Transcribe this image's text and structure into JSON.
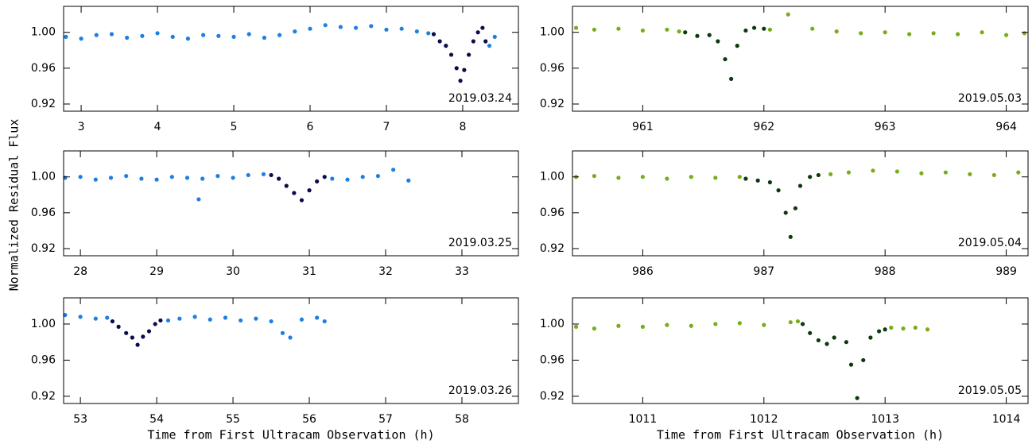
{
  "chart_data": [
    {
      "type": "scatter",
      "annotation": "2019.03.24",
      "ylabel": "Normalized Residual Flux",
      "xlim": [
        2.77,
        8.73
      ],
      "xticks": [
        3,
        4,
        5,
        6,
        7,
        8
      ],
      "ylim": [
        0.912,
        1.029
      ],
      "yticks": [
        0.92,
        0.96,
        {
          "value": 1,
          "label": "1.00"
        }
      ],
      "series": [
        {
          "color": "#1f7fe0",
          "x": [
            2.8,
            3.0,
            3.2,
            3.4,
            3.6,
            3.8,
            4.0,
            4.2,
            4.4,
            4.6,
            4.8,
            5.0,
            5.2,
            5.4,
            5.6,
            5.8,
            6.0,
            6.2,
            6.4,
            6.6,
            6.8,
            7.0,
            7.2,
            7.4,
            7.55,
            8.35,
            8.42
          ],
          "values": [
            0.995,
            0.993,
            0.997,
            0.998,
            0.994,
            0.996,
            0.999,
            0.995,
            0.993,
            0.997,
            0.996,
            0.995,
            0.998,
            0.994,
            0.997,
            1.001,
            1.004,
            1.008,
            1.006,
            1.005,
            1.007,
            1.003,
            1.004,
            1.001,
            0.999,
            0.985,
            0.995
          ]
        },
        {
          "color": "#0b0b4d",
          "x": [
            7.62,
            7.7,
            7.78,
            7.85,
            7.92,
            7.97,
            8.02,
            8.08,
            8.14,
            8.2,
            8.26,
            8.3
          ],
          "values": [
            0.998,
            0.99,
            0.985,
            0.975,
            0.96,
            0.946,
            0.958,
            0.975,
            0.99,
            1.0,
            1.005,
            0.99
          ]
        }
      ]
    },
    {
      "type": "scatter",
      "annotation": "2019.03.25",
      "xlim": [
        27.78,
        33.74
      ],
      "xticks": [
        28,
        29,
        30,
        31,
        32,
        33
      ],
      "ylim": [
        0.912,
        1.029
      ],
      "yticks": [
        0.92,
        0.96,
        {
          "value": 1,
          "label": "1.00"
        }
      ],
      "series": [
        {
          "color": "#1f7fe0",
          "x": [
            27.8,
            28.0,
            28.2,
            28.4,
            28.6,
            28.8,
            29.0,
            29.2,
            29.4,
            29.55,
            29.6,
            29.8,
            30.0,
            30.2,
            30.4,
            31.3,
            31.5,
            31.7,
            31.9,
            32.1,
            32.3
          ],
          "values": [
            0.999,
            1.0,
            0.997,
            0.999,
            1.001,
            0.998,
            0.997,
            1.0,
            0.999,
            0.975,
            0.998,
            1.001,
            0.999,
            1.002,
            1.003,
            0.998,
            0.997,
            1.0,
            1.001,
            1.008,
            0.996
          ]
        },
        {
          "color": "#0b0b4d",
          "x": [
            30.5,
            30.6,
            30.7,
            30.8,
            30.9,
            31.0,
            31.1,
            31.2
          ],
          "values": [
            1.002,
            0.998,
            0.99,
            0.982,
            0.974,
            0.985,
            0.995,
            1.0
          ]
        }
      ]
    },
    {
      "type": "scatter",
      "annotation": "2019.03.26",
      "xlabel": "Time from First Ultracam Observation (h)",
      "xlim": [
        52.78,
        58.74
      ],
      "xticks": [
        53,
        54,
        55,
        56,
        57,
        58
      ],
      "ylim": [
        0.912,
        1.029
      ],
      "yticks": [
        0.92,
        0.96,
        {
          "value": 1,
          "label": "1.00"
        }
      ],
      "series": [
        {
          "color": "#1f7fe0",
          "x": [
            52.8,
            53.0,
            53.2,
            53.35,
            54.15,
            54.3,
            54.5,
            54.7,
            54.9,
            55.1,
            55.3,
            55.5,
            55.65,
            55.75,
            55.9,
            56.1,
            56.2
          ],
          "values": [
            1.01,
            1.008,
            1.006,
            1.007,
            1.004,
            1.006,
            1.008,
            1.005,
            1.007,
            1.004,
            1.006,
            1.003,
            0.99,
            0.985,
            1.005,
            1.007,
            1.003
          ]
        },
        {
          "color": "#0b0b4d",
          "x": [
            53.42,
            53.5,
            53.6,
            53.68,
            53.75,
            53.82,
            53.9,
            53.98,
            54.05
          ],
          "values": [
            1.003,
            0.997,
            0.99,
            0.985,
            0.977,
            0.986,
            0.992,
            1.0,
            1.004
          ]
        }
      ]
    },
    {
      "type": "scatter",
      "annotation": "2019.05.03",
      "xlim": [
        960.42,
        964.18
      ],
      "xticks": [
        961,
        962,
        963,
        964
      ],
      "ylim": [
        0.912,
        1.029
      ],
      "yticks": [
        0.92,
        0.96,
        {
          "value": 1,
          "label": "1.00"
        }
      ],
      "series": [
        {
          "color": "#7aab1c",
          "x": [
            960.45,
            960.6,
            960.8,
            961.0,
            961.2,
            961.3,
            962.05,
            962.2,
            962.4,
            962.6,
            962.8,
            963.0,
            963.2,
            963.4,
            963.6,
            963.8,
            964.0,
            964.15
          ],
          "values": [
            1.005,
            1.003,
            1.004,
            1.002,
            1.003,
            1.001,
            1.003,
            1.02,
            1.004,
            1.001,
            0.999,
            1.0,
            0.998,
            0.999,
            0.998,
            1.0,
            0.997,
            0.999
          ]
        },
        {
          "color": "#0c3a0c",
          "x": [
            961.35,
            961.45,
            961.55,
            961.62,
            961.68,
            961.73,
            961.78,
            961.85,
            961.92,
            962.0
          ],
          "values": [
            1.0,
            0.996,
            0.997,
            0.99,
            0.97,
            0.948,
            0.985,
            1.002,
            1.005,
            1.004
          ]
        }
      ]
    },
    {
      "type": "scatter",
      "annotation": "2019.05.04",
      "xlim": [
        985.42,
        989.18
      ],
      "xticks": [
        986,
        987,
        988,
        989
      ],
      "ylim": [
        0.912,
        1.029
      ],
      "yticks": [
        0.92,
        0.96,
        {
          "value": 1,
          "label": "1.00"
        }
      ],
      "series": [
        {
          "color": "#7aab1c",
          "x": [
            985.45,
            985.6,
            985.8,
            986.0,
            986.2,
            986.4,
            986.6,
            986.8,
            987.55,
            987.7,
            987.9,
            988.1,
            988.3,
            988.5,
            988.7,
            988.9,
            989.1
          ],
          "values": [
            1.0,
            1.001,
            0.999,
            1.0,
            0.998,
            1.0,
            0.999,
            1.0,
            1.003,
            1.005,
            1.007,
            1.006,
            1.004,
            1.005,
            1.003,
            1.002,
            1.005
          ]
        },
        {
          "color": "#0c3a0c",
          "x": [
            986.85,
            986.95,
            987.05,
            987.12,
            987.18,
            987.22,
            987.26,
            987.3,
            987.38,
            987.45
          ],
          "values": [
            0.998,
            0.996,
            0.994,
            0.985,
            0.96,
            0.933,
            0.965,
            0.99,
            1.0,
            1.002
          ]
        }
      ]
    },
    {
      "type": "scatter",
      "annotation": "2019.05.05",
      "xlabel": "Time from First Ultracam Observation (h)",
      "xlim": [
        1010.42,
        1014.18
      ],
      "xticks": [
        1011,
        1012,
        1013,
        1014
      ],
      "ylim": [
        0.912,
        1.029
      ],
      "yticks": [
        0.92,
        0.96,
        {
          "value": 1,
          "label": "1.00"
        }
      ],
      "series": [
        {
          "color": "#7aab1c",
          "x": [
            1010.45,
            1010.6,
            1010.8,
            1011.0,
            1011.2,
            1011.4,
            1011.6,
            1011.8,
            1012.0,
            1012.22,
            1012.28,
            1013.05,
            1013.15,
            1013.25,
            1013.35
          ],
          "values": [
            0.997,
            0.995,
            0.998,
            0.997,
            0.999,
            0.998,
            1.0,
            1.001,
            0.999,
            1.002,
            1.003,
            0.996,
            0.995,
            0.996,
            0.994
          ]
        },
        {
          "color": "#0c3a0c",
          "x": [
            1012.32,
            1012.38,
            1012.45,
            1012.52,
            1012.58,
            1012.68,
            1012.72,
            1012.77,
            1012.82,
            1012.88,
            1012.95,
            1013.0
          ],
          "values": [
            1.0,
            0.99,
            0.982,
            0.978,
            0.985,
            0.98,
            0.955,
            0.918,
            0.96,
            0.985,
            0.992,
            0.994
          ]
        }
      ]
    }
  ]
}
